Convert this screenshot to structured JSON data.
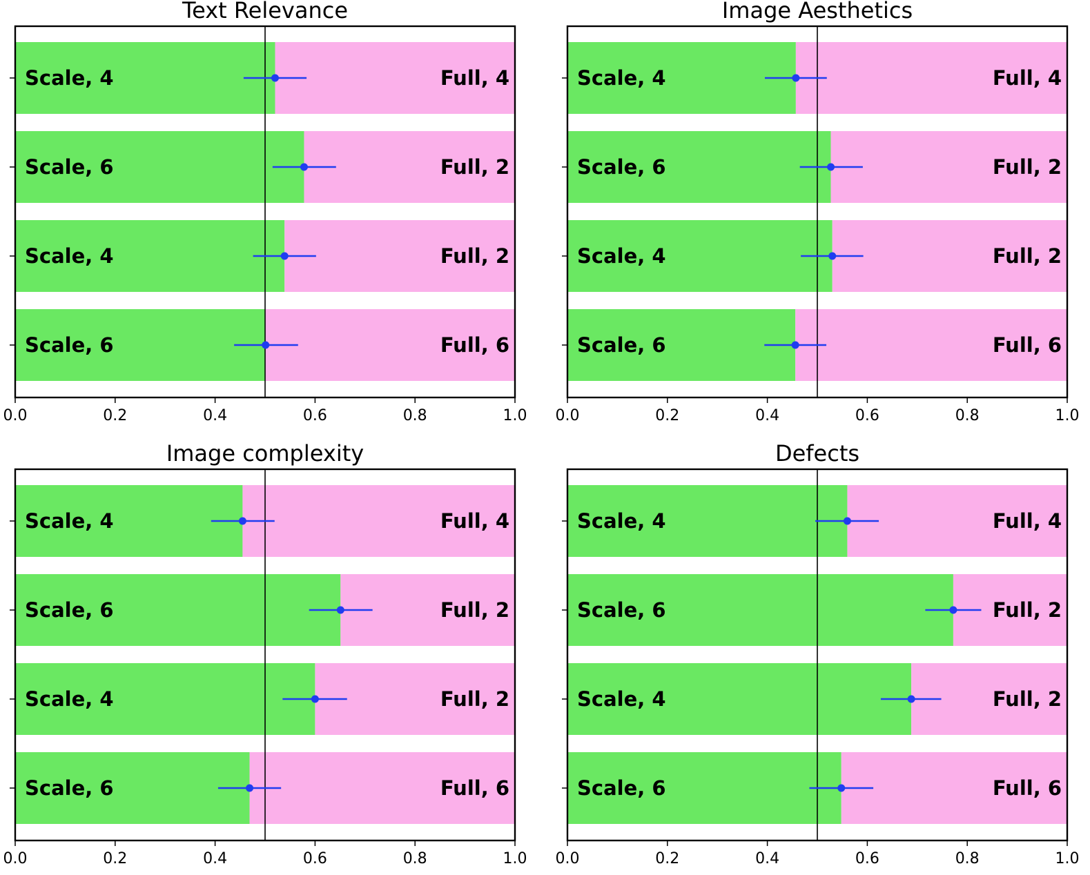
{
  "figure": {
    "colors": {
      "left_bar": "#6ae862",
      "right_bar": "#fbb0ea",
      "marker": "#1f3df0",
      "reference_line": "#000000",
      "frame": "#000000"
    }
  },
  "chart_data": [
    {
      "type": "bar",
      "orientation": "horizontal-stacked",
      "title": "Text Relevance",
      "xlim": [
        0,
        1
      ],
      "xticks": [
        "0.0",
        "0.2",
        "0.4",
        "0.6",
        "0.8",
        "1.0"
      ],
      "reference_line": 0.5,
      "rows": [
        {
          "left_label": "Scale, 4",
          "right_label": "Full, 4",
          "value": 0.52,
          "err_low": 0.457,
          "err_high": 0.583
        },
        {
          "left_label": "Scale, 6",
          "right_label": "Full, 2",
          "value": 0.578,
          "err_low": 0.515,
          "err_high": 0.642
        },
        {
          "left_label": "Scale, 4",
          "right_label": "Full, 2",
          "value": 0.539,
          "err_low": 0.476,
          "err_high": 0.602
        },
        {
          "left_label": "Scale, 6",
          "right_label": "Full, 6",
          "value": 0.501,
          "err_low": 0.438,
          "err_high": 0.566
        }
      ]
    },
    {
      "type": "bar",
      "orientation": "horizontal-stacked",
      "title": "Image Aesthetics",
      "xlim": [
        0,
        1
      ],
      "xticks": [
        "0.0",
        "0.2",
        "0.4",
        "0.6",
        "0.8",
        "1.0"
      ],
      "reference_line": 0.5,
      "rows": [
        {
          "left_label": "Scale, 4",
          "right_label": "Full, 4",
          "value": 0.457,
          "err_low": 0.395,
          "err_high": 0.519
        },
        {
          "left_label": "Scale, 6",
          "right_label": "Full, 2",
          "value": 0.527,
          "err_low": 0.465,
          "err_high": 0.591
        },
        {
          "left_label": "Scale, 4",
          "right_label": "Full, 2",
          "value": 0.53,
          "err_low": 0.467,
          "err_high": 0.592
        },
        {
          "left_label": "Scale, 6",
          "right_label": "Full, 6",
          "value": 0.456,
          "err_low": 0.394,
          "err_high": 0.518
        }
      ]
    },
    {
      "type": "bar",
      "orientation": "horizontal-stacked",
      "title": "Image complexity",
      "xlim": [
        0,
        1
      ],
      "xticks": [
        "0.0",
        "0.2",
        "0.4",
        "0.6",
        "0.8",
        "1.0"
      ],
      "reference_line": 0.5,
      "rows": [
        {
          "left_label": "Scale, 4",
          "right_label": "Full, 4",
          "value": 0.455,
          "err_low": 0.392,
          "err_high": 0.519
        },
        {
          "left_label": "Scale, 6",
          "right_label": "Full, 2",
          "value": 0.651,
          "err_low": 0.588,
          "err_high": 0.715
        },
        {
          "left_label": "Scale, 4",
          "right_label": "Full, 2",
          "value": 0.6,
          "err_low": 0.535,
          "err_high": 0.664
        },
        {
          "left_label": "Scale, 6",
          "right_label": "Full, 6",
          "value": 0.469,
          "err_low": 0.406,
          "err_high": 0.532
        }
      ]
    },
    {
      "type": "bar",
      "orientation": "horizontal-stacked",
      "title": "Defects",
      "xlim": [
        0,
        1
      ],
      "xticks": [
        "0.0",
        "0.2",
        "0.4",
        "0.6",
        "0.8",
        "1.0"
      ],
      "reference_line": 0.5,
      "rows": [
        {
          "left_label": "Scale, 4",
          "right_label": "Full, 4",
          "value": 0.56,
          "err_low": 0.496,
          "err_high": 0.623
        },
        {
          "left_label": "Scale, 6",
          "right_label": "Full, 2",
          "value": 0.772,
          "err_low": 0.716,
          "err_high": 0.828
        },
        {
          "left_label": "Scale, 4",
          "right_label": "Full, 2",
          "value": 0.688,
          "err_low": 0.627,
          "err_high": 0.748
        },
        {
          "left_label": "Scale, 6",
          "right_label": "Full, 6",
          "value": 0.548,
          "err_low": 0.484,
          "err_high": 0.612
        }
      ]
    }
  ]
}
